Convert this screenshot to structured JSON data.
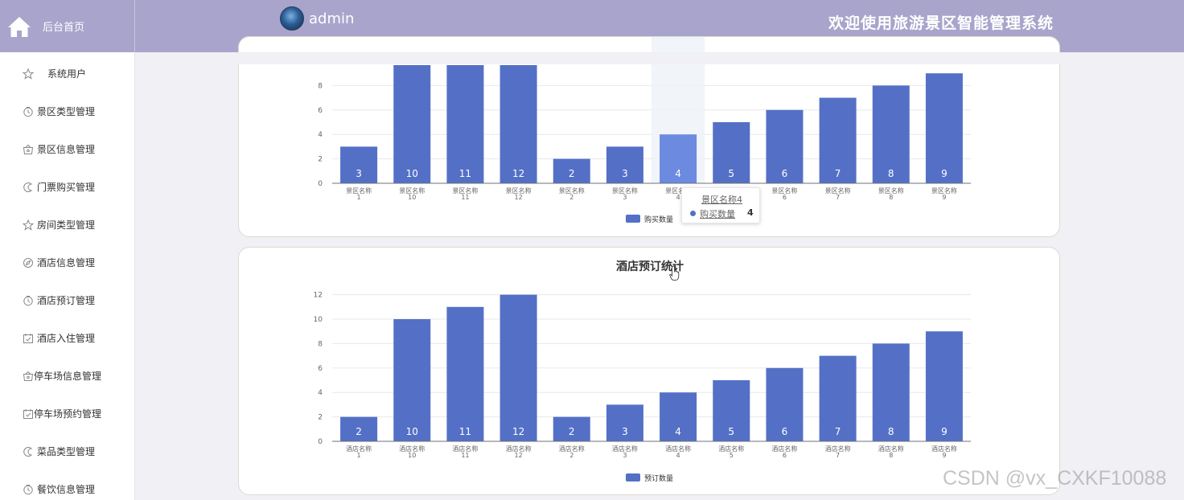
{
  "header": {
    "home_label": "后台首页",
    "username": "admin",
    "system_title": "欢迎使用旅游景区智能管理系统",
    "bar_color": "#a8a4cb"
  },
  "sidebar": {
    "items": [
      {
        "label": "系统用户",
        "icon": "star-icon"
      },
      {
        "label": "景区类型管理",
        "icon": "clock-icon"
      },
      {
        "label": "景区信息管理",
        "icon": "basket-icon"
      },
      {
        "label": "门票购买管理",
        "icon": "moon-icon"
      },
      {
        "label": "房间类型管理",
        "icon": "star-icon"
      },
      {
        "label": "酒店信息管理",
        "icon": "compass-icon"
      },
      {
        "label": "酒店预订管理",
        "icon": "clock-icon"
      },
      {
        "label": "酒店入住管理",
        "icon": "calendar-check-icon"
      },
      {
        "label": "停车场信息管理",
        "icon": "basket-icon"
      },
      {
        "label": "停车场预约管理",
        "icon": "calendar-check-icon"
      },
      {
        "label": "菜品类型管理",
        "icon": "moon-icon"
      },
      {
        "label": "餐饮信息管理",
        "icon": "clock-icon"
      }
    ]
  },
  "tooltip": {
    "title": "景区名称4",
    "series_name": "购买数量",
    "value": "4"
  },
  "watermark": "CSDN @vx_CXKF10088",
  "chart_data": [
    {
      "type": "bar",
      "title": "",
      "categories": [
        "景区名称1",
        "景区名称10",
        "景区名称11",
        "景区名称12",
        "景区名称2",
        "景区名称3",
        "景区名称4",
        "景区名称5",
        "景区名称6",
        "景区名称7",
        "景区名称8",
        "景区名称9"
      ],
      "series": [
        {
          "name": "购买数量",
          "values": [
            3,
            10,
            11,
            12,
            2,
            3,
            4,
            5,
            6,
            7,
            8,
            9
          ]
        }
      ],
      "yticks": [
        "0",
        "2",
        "4",
        "6",
        "8"
      ],
      "ylim": [
        0,
        12
      ],
      "grid": true,
      "legend": "bottom-center",
      "highlighted_index": 6,
      "color": "#5470c6",
      "highlight_color": "#6c8ae0"
    },
    {
      "type": "bar",
      "title": "酒店预订统计",
      "categories": [
        "酒店名称1",
        "酒店名称10",
        "酒店名称11",
        "酒店名称12",
        "酒店名称2",
        "酒店名称3",
        "酒店名称4",
        "酒店名称5",
        "酒店名称6",
        "酒店名称7",
        "酒店名称8",
        "酒店名称9"
      ],
      "series": [
        {
          "name": "预订数量",
          "values": [
            2,
            10,
            11,
            12,
            2,
            3,
            4,
            5,
            6,
            7,
            8,
            9
          ]
        }
      ],
      "yticks": [
        "0",
        "2",
        "4",
        "6",
        "8",
        "10",
        "12"
      ],
      "ylim": [
        0,
        12
      ],
      "grid": true,
      "legend": "bottom-center",
      "color": "#5470c6"
    }
  ]
}
